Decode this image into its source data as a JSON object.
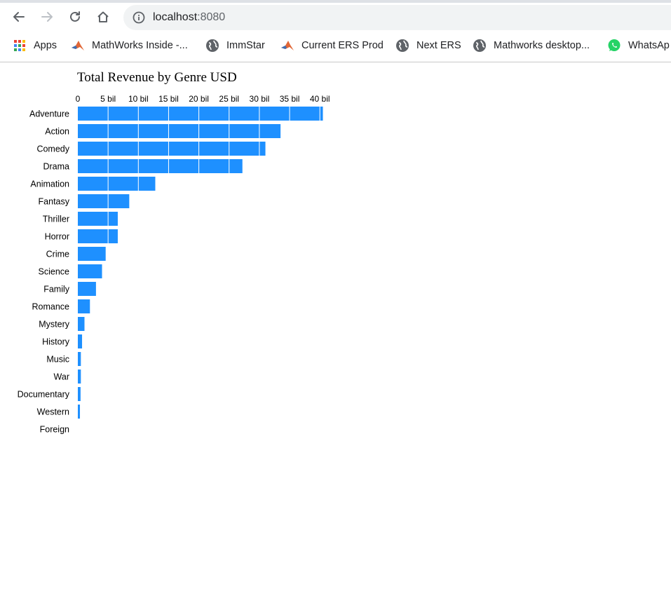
{
  "browser": {
    "url_host": "localhost",
    "url_port": ":8080",
    "bookmarks": [
      {
        "label": "Apps",
        "icon": "apps-grid-icon"
      },
      {
        "label": "MathWorks Inside -...",
        "icon": "matlab-icon"
      },
      {
        "label": "ImmStar",
        "icon": "globe-icon"
      },
      {
        "label": "Current ERS Prod",
        "icon": "matlab-icon"
      },
      {
        "label": "Next ERS",
        "icon": "globe-icon"
      },
      {
        "label": "Mathworks desktop...",
        "icon": "globe-icon"
      },
      {
        "label": "WhatsAp",
        "icon": "whatsapp-icon"
      }
    ]
  },
  "colors": {
    "bar": "#1e90ff",
    "gridline": "#ffffff"
  },
  "chart_data": {
    "type": "bar",
    "orientation": "horizontal",
    "title": "Total Revenue by Genre USD",
    "xlabel": "",
    "ylabel": "",
    "x_ticks": [
      "0",
      "5 bil",
      "10 bil",
      "15 bil",
      "20 bil",
      "25 bil",
      "30 bil",
      "35 bil",
      "40 bil"
    ],
    "xlim": [
      0,
      40.5
    ],
    "unit": "billion USD",
    "categories": [
      "Adventure",
      "Action",
      "Comedy",
      "Drama",
      "Animation",
      "Fantasy",
      "Thriller",
      "Horror",
      "Crime",
      "Science",
      "Family",
      "Romance",
      "Mystery",
      "History",
      "Music",
      "War",
      "Documentary",
      "Western",
      "Foreign"
    ],
    "values": [
      40.5,
      33.5,
      31.0,
      27.2,
      12.8,
      8.5,
      6.6,
      6.6,
      4.6,
      4.0,
      3.0,
      2.0,
      1.1,
      0.7,
      0.5,
      0.5,
      0.45,
      0.35,
      0.0
    ],
    "grid": "vertical gridlines (white) over bars",
    "legend": "none"
  }
}
